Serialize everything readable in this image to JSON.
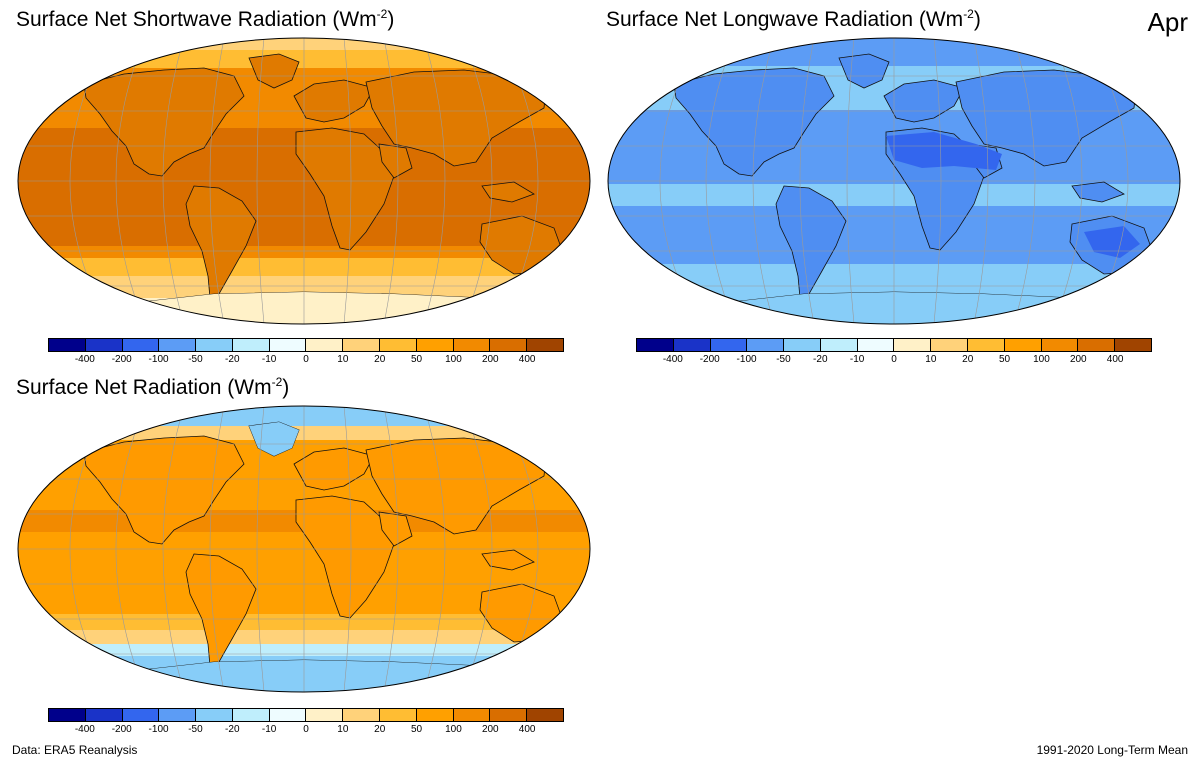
{
  "month": "Apr",
  "units_base": "Wm",
  "units_exp": "-2",
  "panels": [
    {
      "id": "shortwave",
      "title": "Surface Net Shortwave Radiation ("
    },
    {
      "id": "longwave",
      "title": "Surface Net Longwave Radiation ("
    },
    {
      "id": "net",
      "title": "Surface Net Radiation ("
    }
  ],
  "colorbar": {
    "colors": [
      "#00008b",
      "#1a33c8",
      "#3366ee",
      "#5c9cf5",
      "#87cdf8",
      "#bfeefc",
      "#eefcff",
      "#fff1c8",
      "#ffd27a",
      "#ffbd33",
      "#ffa000",
      "#f28a00",
      "#d96e00",
      "#a04400"
    ],
    "labels": [
      "-400",
      "-200",
      "-100",
      "-50",
      "-20",
      "-10",
      "0",
      "10",
      "20",
      "50",
      "100",
      "200",
      "400"
    ]
  },
  "footer": {
    "left": "Data: ERA5 Reanalysis",
    "right": "1991-2020 Long-Term Mean"
  }
}
